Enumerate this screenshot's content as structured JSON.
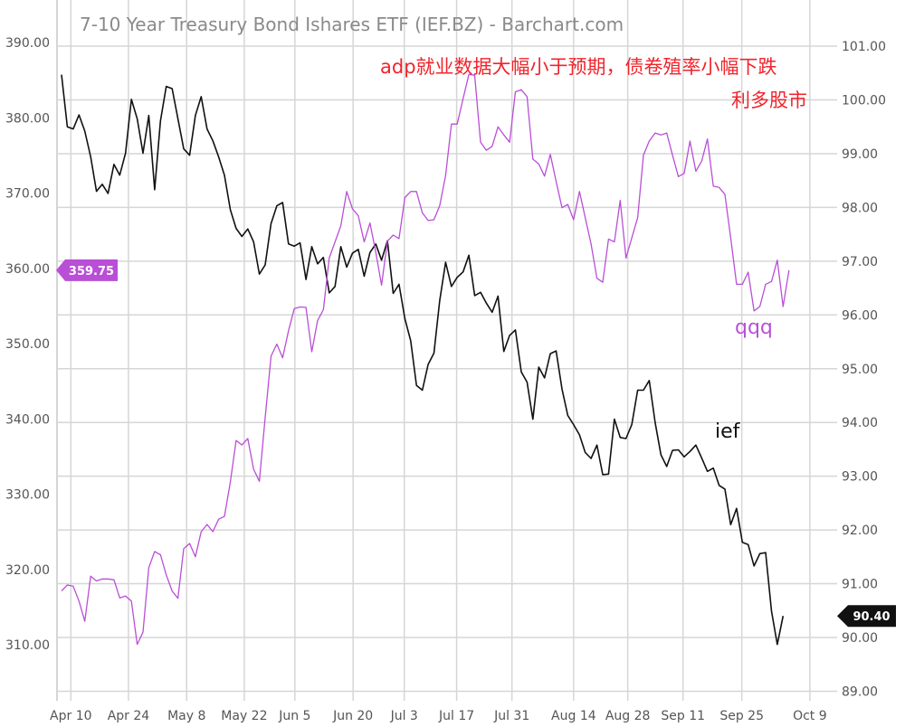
{
  "chart_data": {
    "type": "line",
    "title": "7-10 Year Treasury Bond Ishares ETF (IEF.BZ) - Barchart.com",
    "annotations": [
      "adp就业数据大幅小于预期，债卷殖率小幅下跌",
      "利多股市"
    ],
    "x_ticks": [
      {
        "label": "Apr 10",
        "index": 1.6
      },
      {
        "label": "Apr 24",
        "index": 11.5
      },
      {
        "label": "May 8",
        "index": 21.5
      },
      {
        "label": "May 22",
        "index": 31.4
      },
      {
        "label": "Jun 5",
        "index": 40.1
      },
      {
        "label": "Jun 20",
        "index": 50.1
      },
      {
        "label": "Jul 3",
        "index": 58.9
      },
      {
        "label": "Jul 17",
        "index": 67.9
      },
      {
        "label": "Jul 31",
        "index": 77.4
      },
      {
        "label": "Aug 14",
        "index": 88.0
      },
      {
        "label": "Aug 28",
        "index": 97.3
      },
      {
        "label": "Sep 11",
        "index": 106.8
      },
      {
        "label": "Sep 25",
        "index": 116.9
      },
      {
        "label": "Oct 9",
        "index": 128.6
      }
    ],
    "left_axis": {
      "ylim": [
        310,
        390
      ],
      "ticks": [
        "390.00",
        "380.00",
        "370.00",
        "360.00",
        "350.00",
        "340.00",
        "330.00",
        "320.00",
        "310.00"
      ]
    },
    "right_axis": {
      "ylim": [
        89,
        101
      ],
      "ticks": [
        "101.00",
        "100.00",
        "99.00",
        "98.00",
        "97.00",
        "96.00",
        "95.00",
        "94.00",
        "93.00",
        "92.00",
        "91.00",
        "90.00",
        "89.00"
      ]
    },
    "series": [
      {
        "name": "ief",
        "axis": "right",
        "color": "#111111",
        "last_label": "90.40",
        "values": [
          100.47,
          99.5,
          99.46,
          99.72,
          99.42,
          98.94,
          98.3,
          98.43,
          98.26,
          98.8,
          98.6,
          99.01,
          100.01,
          99.65,
          99.01,
          99.71,
          98.33,
          99.61,
          100.25,
          100.21,
          99.65,
          99.09,
          98.97,
          99.71,
          100.06,
          99.46,
          99.24,
          98.94,
          98.6,
          97.96,
          97.61,
          97.46,
          97.6,
          97.36,
          96.76,
          96.93,
          97.7,
          98.03,
          98.09,
          97.32,
          97.28,
          97.34,
          96.66,
          97.27,
          96.95,
          97.07,
          96.41,
          96.53,
          97.27,
          96.89,
          97.15,
          97.22,
          96.72,
          97.16,
          97.32,
          97.02,
          97.38,
          96.4,
          96.57,
          95.93,
          95.52,
          94.69,
          94.6,
          95.08,
          95.29,
          96.27,
          96.98,
          96.53,
          96.7,
          96.8,
          97.11,
          96.36,
          96.42,
          96.22,
          96.05,
          96.35,
          95.32,
          95.62,
          95.72,
          94.94,
          94.75,
          94.06,
          95.03,
          94.83,
          95.28,
          95.33,
          94.62,
          94.13,
          93.96,
          93.77,
          93.44,
          93.33,
          93.58,
          93.03,
          93.04,
          94.06,
          93.72,
          93.7,
          93.96,
          94.6,
          94.6,
          94.78,
          94.0,
          93.4,
          93.18,
          93.48,
          93.49,
          93.36,
          93.46,
          93.58,
          93.34,
          93.09,
          93.15,
          92.83,
          92.76,
          92.1,
          92.4,
          91.77,
          91.73,
          91.33,
          91.56,
          91.58,
          90.49,
          89.87,
          90.4
        ]
      },
      {
        "name": "qqq",
        "axis": "left",
        "color": "#b94fd6",
        "last_label": "359.75",
        "values": [
          317.13,
          317.93,
          317.77,
          315.79,
          313.11,
          319.11,
          318.47,
          318.73,
          318.73,
          318.63,
          316.22,
          316.48,
          315.79,
          310.05,
          311.66,
          320.23,
          322.38,
          321.95,
          319.27,
          317.13,
          316.16,
          322.76,
          323.45,
          321.69,
          325.01,
          325.97,
          325.01,
          326.67,
          327.05,
          331.6,
          337.13,
          336.54,
          337.39,
          333.32,
          331.71,
          340.18,
          348.33,
          349.94,
          348.12,
          351.71,
          354.66,
          354.87,
          354.82,
          348.92,
          353.05,
          354.5,
          361.36,
          363.51,
          365.65,
          370.21,
          367.9,
          366.99,
          363.51,
          366.03,
          362.17,
          357.77,
          363.61,
          364.42,
          363.94,
          369.4,
          370.21,
          370.21,
          367.37,
          366.35,
          366.46,
          368.33,
          372.35,
          379.16,
          379.16,
          382.54,
          385.76,
          385.65,
          376.75,
          375.68,
          376.21,
          378.79,
          377.72,
          376.75,
          383.45,
          383.72,
          382.81,
          374.5,
          373.86,
          372.25,
          375.14,
          371.55,
          368.06,
          368.49,
          366.46,
          370.21,
          366.72,
          363.24,
          358.68,
          358.15,
          363.88,
          363.51,
          369.03,
          361.36,
          364.04,
          366.72,
          375.03,
          376.91,
          377.98,
          377.72,
          377.98,
          375.03,
          372.19,
          372.62,
          376.91,
          372.89,
          374.23,
          377.18,
          370.91,
          370.75,
          369.83,
          364.04,
          357.88,
          357.88,
          359.49,
          354.34,
          354.93,
          357.88,
          358.25,
          361.09,
          354.93,
          359.75
        ]
      }
    ]
  }
}
